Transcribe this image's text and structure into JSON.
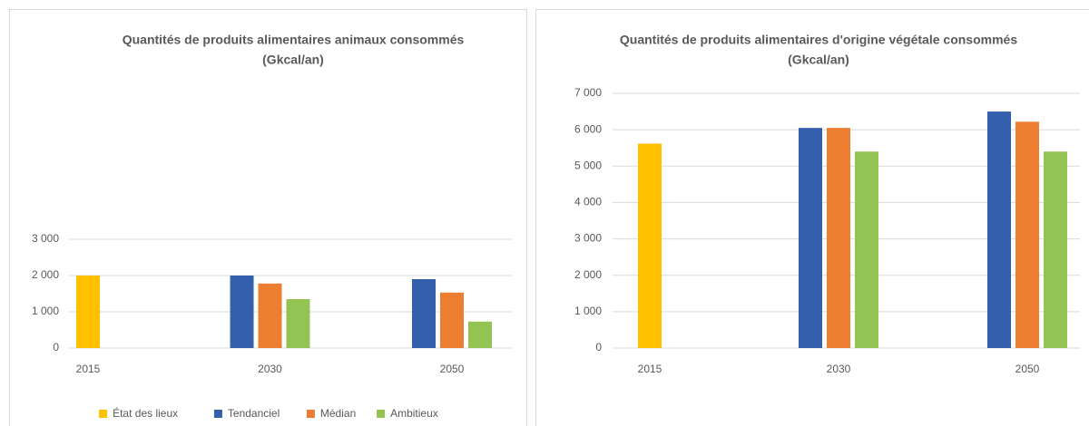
{
  "chart_data": [
    {
      "type": "bar",
      "title": [
        "Quantités de produits alimentaires animaux consommés",
        "(Gkcal/an)"
      ],
      "categories": [
        "2015",
        "2030",
        "2050"
      ],
      "series": [
        {
          "name": "État des lieux",
          "color": "#ffc000",
          "values": [
            2000,
            null,
            null
          ]
        },
        {
          "name": "Tendanciel",
          "color": "#335fac",
          "values": [
            null,
            2000,
            1900
          ]
        },
        {
          "name": "Médian",
          "color": "#ed7d31",
          "values": [
            null,
            1780,
            1530
          ]
        },
        {
          "name": "Ambitieux",
          "color": "#92c353",
          "values": [
            null,
            1350,
            730
          ]
        }
      ],
      "ylim": [
        0,
        3000
      ],
      "yticks": [
        0,
        {
          "value": 1000,
          "label": "1 000"
        },
        {
          "value": 2000,
          "label": "2 000"
        },
        {
          "value": 3000,
          "label": "3 000"
        }
      ],
      "grid": true,
      "legend": "bottom"
    },
    {
      "type": "bar",
      "title": [
        "Quantités de produits alimentaires d'origine végétale consommés",
        "(Gkcal/an)"
      ],
      "categories": [
        "2015",
        "2030",
        "2050"
      ],
      "series": [
        {
          "color": "#ffc000",
          "values": [
            5620,
            null,
            null
          ]
        },
        {
          "color": "#335fac",
          "values": [
            null,
            6050,
            6500
          ]
        },
        {
          "color": "#ed7d31",
          "values": [
            null,
            6050,
            6220
          ]
        },
        {
          "color": "#92c353",
          "values": [
            null,
            5400,
            5400
          ]
        }
      ],
      "ylim": [
        0,
        7000
      ],
      "yticks": [
        0,
        {
          "value": 1000,
          "label": "1 000"
        },
        {
          "value": 2000,
          "label": "2 000"
        },
        {
          "value": 3000,
          "label": "3 000"
        },
        {
          "value": 4000,
          "label": "4 000"
        },
        {
          "value": 5000,
          "label": "5 000"
        },
        {
          "value": 6000,
          "label": "6 000"
        },
        {
          "value": 7000,
          "label": "7 000"
        }
      ],
      "grid": true
    }
  ]
}
